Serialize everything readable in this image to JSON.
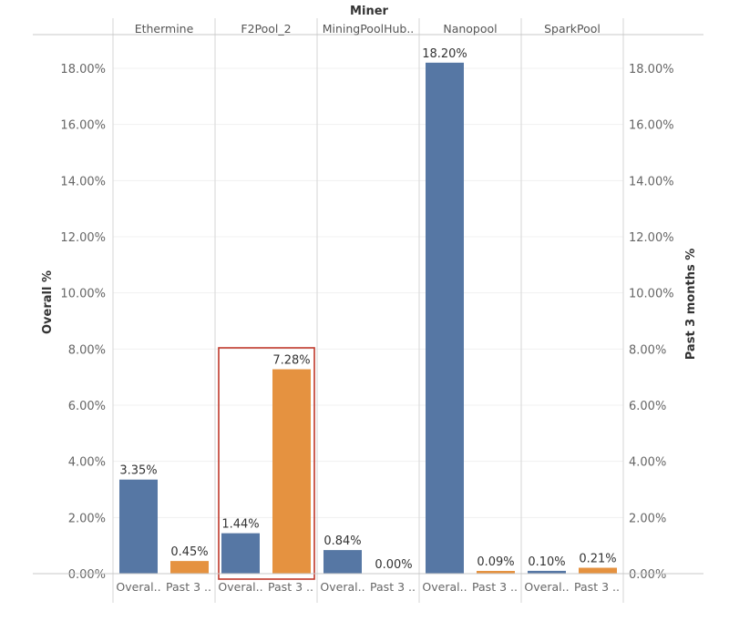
{
  "chart_data": {
    "type": "bar",
    "title": "Miner",
    "ylabel_left": "Overall %",
    "ylabel_right": "Past 3 months %",
    "ylim": [
      0,
      19.2
    ],
    "yticks": [
      "0.00%",
      "2.00%",
      "4.00%",
      "6.00%",
      "8.00%",
      "10.00%",
      "12.00%",
      "14.00%",
      "16.00%",
      "18.00%"
    ],
    "ytick_values": [
      0,
      2,
      4,
      6,
      8,
      10,
      12,
      14,
      16,
      18
    ],
    "categories": [
      "Ethermine",
      "F2Pool_2",
      "MiningPoolHub..",
      "Nanopool",
      "SparkPool"
    ],
    "measure_labels": [
      "Overal..",
      "Past 3 .."
    ],
    "series": [
      {
        "name": "Overall %",
        "color": "#5677a4",
        "values": [
          3.35,
          1.44,
          0.84,
          18.2,
          0.1
        ],
        "labels": [
          "3.35%",
          "1.44%",
          "0.84%",
          "18.20%",
          "0.10%"
        ]
      },
      {
        "name": "Past 3 months %",
        "color": "#e59240",
        "values": [
          0.45,
          7.28,
          0.0,
          0.09,
          0.21
        ],
        "labels": [
          "0.45%",
          "7.28%",
          "0.00%",
          "0.09%",
          "0.21%"
        ]
      }
    ],
    "highlight": {
      "category": "F2Pool_2",
      "color": "#c0392b"
    },
    "grid": true
  }
}
